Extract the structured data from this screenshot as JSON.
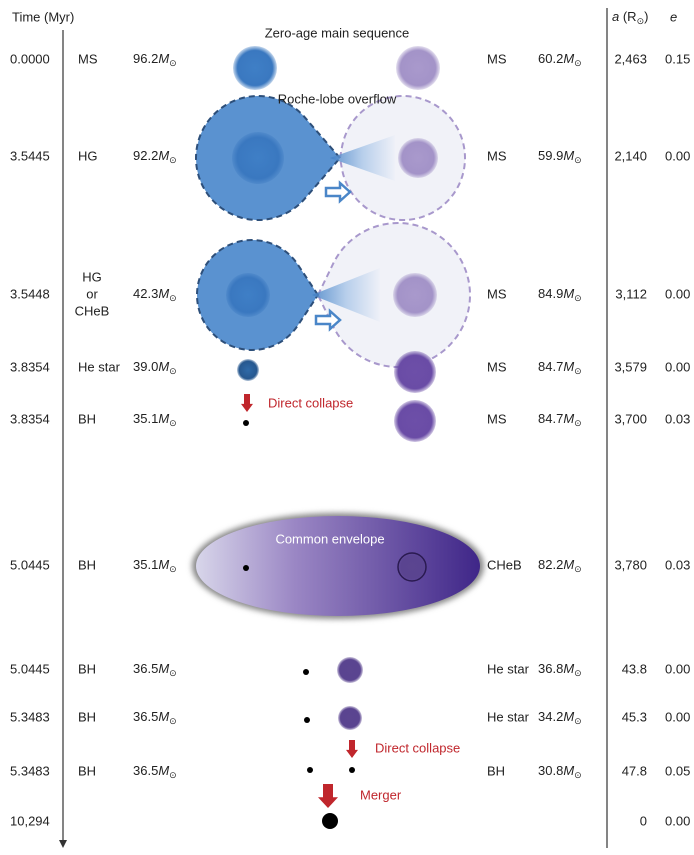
{
  "header": {
    "time": "Time (Myr)",
    "a_label": [
      "a",
      " (R",
      "⊙",
      ")"
    ],
    "e": "e"
  },
  "mass_symbol": "M",
  "mass_sub": "⊙",
  "rows": [
    {
      "time": "0.0000",
      "type1": [
        "MS"
      ],
      "mass1": "96.2",
      "type2": "MS",
      "mass2": "60.2",
      "a": "2,463",
      "e": "0.15"
    },
    {
      "time": "3.5445",
      "type1": [
        "HG"
      ],
      "mass1": "92.2",
      "type2": "MS",
      "mass2": "59.9",
      "a": "2,140",
      "e": "0.00"
    },
    {
      "time": "3.5448",
      "type1": [
        "HG",
        "or",
        "CHeB"
      ],
      "mass1": "42.3",
      "type2": "MS",
      "mass2": "84.9",
      "a": "3,112",
      "e": "0.00"
    },
    {
      "time": "3.8354",
      "type1": [
        "He star"
      ],
      "mass1": "39.0",
      "type2": "MS",
      "mass2": "84.7",
      "a": "3,579",
      "e": "0.00"
    },
    {
      "time": "3.8354",
      "type1": [
        "BH"
      ],
      "mass1": "35.1",
      "type2": "MS",
      "mass2": "84.7",
      "a": "3,700",
      "e": "0.03"
    },
    {
      "time": "5.0445",
      "type1": [
        "BH"
      ],
      "mass1": "35.1",
      "type2": "CHeB",
      "mass2": "82.2",
      "a": "3,780",
      "e": "0.03"
    },
    {
      "time": "5.0445",
      "type1": [
        "BH"
      ],
      "mass1": "36.5",
      "type2": "He star",
      "mass2": "36.8",
      "a": "43.8",
      "e": "0.00"
    },
    {
      "time": "5.3483",
      "type1": [
        "BH"
      ],
      "mass1": "36.5",
      "type2": "He star",
      "mass2": "34.2",
      "a": "45.3",
      "e": "0.00"
    },
    {
      "time": "5.3483",
      "type1": [
        "BH"
      ],
      "mass1": "36.5",
      "type2": "BH",
      "mass2": "30.8",
      "a": "47.8",
      "e": "0.05"
    },
    {
      "time": "10,294",
      "a": "0",
      "e": "0.00"
    }
  ],
  "annotations": {
    "zams": "Zero-age main sequence",
    "rlof": "Roche-lobe overflow",
    "collapse1": "Direct collapse",
    "common_envelope": "Common envelope",
    "collapse2": "Direct collapse",
    "merger": "Merger"
  }
}
